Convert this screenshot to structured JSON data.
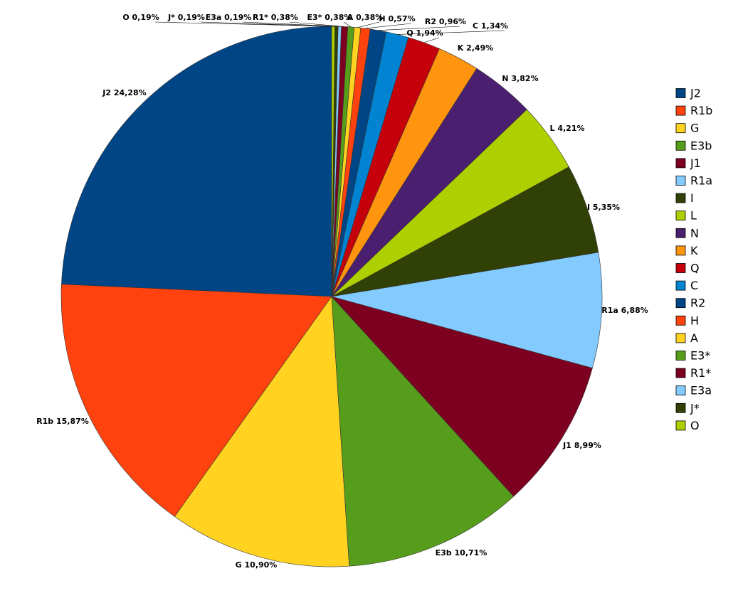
{
  "chart_data": {
    "type": "pie",
    "categories": [
      "J2",
      "R1b",
      "G",
      "E3b",
      "J1",
      "R1a",
      "I",
      "L",
      "N",
      "K",
      "Q",
      "C",
      "R2",
      "H",
      "A",
      "E3*",
      "R1*",
      "E3a",
      "J*",
      "O"
    ],
    "values": [
      24.28,
      15.87,
      10.9,
      10.71,
      8.99,
      6.88,
      5.35,
      4.21,
      3.82,
      2.49,
      1.94,
      1.34,
      0.96,
      0.57,
      0.38,
      0.38,
      0.38,
      0.19,
      0.19,
      0.19
    ],
    "value_labels": [
      "24,28%",
      "15,87%",
      "10,90%",
      "10,71%",
      "8,99%",
      "6,88%",
      "5,35%",
      "4,21%",
      "3,82%",
      "2,49%",
      "1,94%",
      "1,34%",
      "0,96%",
      "0,57%",
      "0,38%",
      "0,38%",
      "0,38%",
      "0,19%",
      "0,19%",
      "0,19%"
    ],
    "colors": [
      "#004586",
      "#ff420e",
      "#ffd320",
      "#579d1c",
      "#7e0021",
      "#83caff",
      "#314004",
      "#aecf00",
      "#4b1f6f",
      "#ff950e",
      "#c5000b",
      "#0084d1",
      "#004586",
      "#ff420e",
      "#ffd320",
      "#579d1c",
      "#7e0021",
      "#83caff",
      "#314004",
      "#aecf00"
    ],
    "legend": "right"
  }
}
